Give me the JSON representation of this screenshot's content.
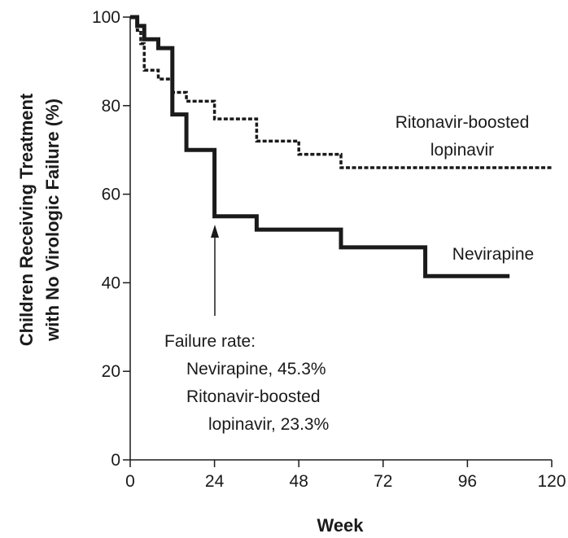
{
  "chart_data": {
    "type": "line",
    "xlabel": "Week",
    "ylabel": [
      "Children Receiving Treatment",
      "with No Virologic Failure (%)"
    ],
    "xlim": [
      0,
      120
    ],
    "ylim": [
      0,
      100
    ],
    "xticks": [
      0,
      24,
      48,
      72,
      96,
      120
    ],
    "yticks": [
      0,
      20,
      40,
      60,
      80,
      100
    ],
    "grid": false,
    "series": [
      {
        "name": "Nevirapine",
        "style": "solid",
        "color": "#1a1a1a",
        "step": true,
        "x": [
          0,
          2,
          4,
          8,
          12,
          16,
          24,
          36,
          60,
          84,
          108
        ],
        "y": [
          100,
          98,
          95,
          93,
          78,
          70,
          55,
          52,
          48,
          41.5,
          41.5
        ]
      },
      {
        "name": "Ritonavir-boosted lopinavir",
        "style": "dotted",
        "color": "#1a1a1a",
        "step": true,
        "x": [
          0,
          2,
          3,
          4,
          8,
          12,
          16,
          24,
          36,
          48,
          60,
          120
        ],
        "y": [
          100,
          97,
          94,
          88,
          86,
          83,
          81,
          77,
          72,
          69,
          66,
          66
        ]
      }
    ],
    "series_labels": [
      {
        "series": "Ritonavir-boosted lopinavir",
        "lines": [
          "Ritonavir-boosted",
          "lopinavir"
        ]
      },
      {
        "series": "Nevirapine",
        "lines": [
          "Nevirapine"
        ]
      }
    ],
    "annotation": {
      "lines": [
        "Failure rate:",
        "Nevirapine, 45.3%",
        "Ritonavir-boosted",
        "lopinavir, 23.3%"
      ],
      "arrow_x": 24,
      "arrow_y": 55
    }
  }
}
